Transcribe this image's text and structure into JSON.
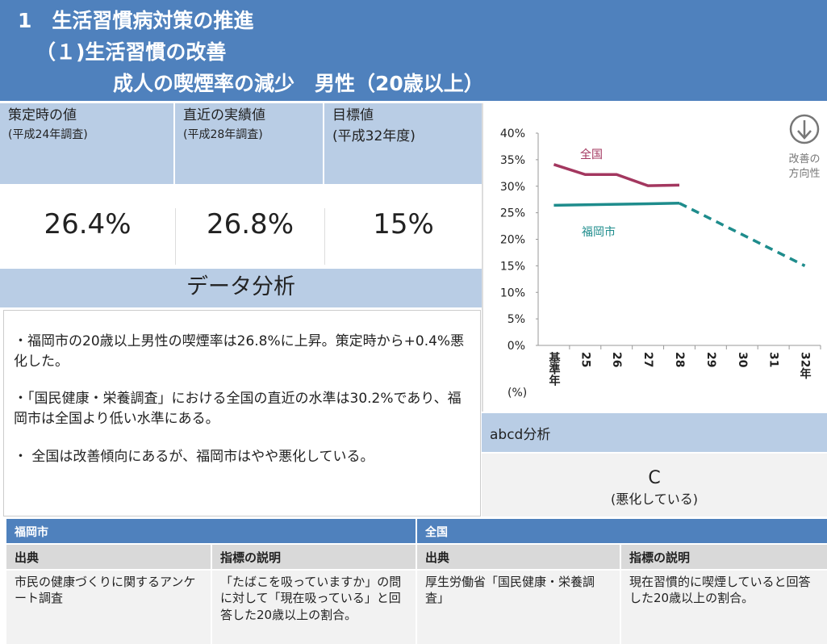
{
  "header": {
    "lines": [
      "1　生活習慣病対策の推進",
      "（１)生活習慣の改善",
      "成人の喫煙率の減少　男性（20歳以上）"
    ]
  },
  "indicators": [
    {
      "label": "策定時の値",
      "sub": "(平成24年調査)",
      "value": "26.4%"
    },
    {
      "label": "直近の実績値",
      "sub": "(平成28年調査)",
      "value": "26.8%"
    },
    {
      "label": "目標値",
      "sub": "(平成32年度)",
      "value": "15%"
    }
  ],
  "analysis": {
    "title": "データ分析",
    "points": [
      "・福岡市の20歳以上男性の喫煙率は26.8%に上昇。策定時から+0.4%悪化した。",
      "・「国民健康・栄養調査」における全国の直近の水準は30.2%であり、福岡市は全国より低い水準にある。",
      "・ 全国は改善傾向にあるが、福岡市はやや悪化している。"
    ]
  },
  "abcd": {
    "title": "abcd分析",
    "grade": "C",
    "note": "(悪化している)"
  },
  "sources": [
    {
      "region": "福岡市",
      "source_header": "出典",
      "desc_header": "指標の説明",
      "source": "市民の健康づくりに関するアンケート調査",
      "desc": "「たばこを吸っていますか」の問に対して「現在吸っている」と回答した20歳以上の割合。"
    },
    {
      "region": "全国",
      "source_header": "出典",
      "desc_header": "指標の説明",
      "source": "厚生労働省「国民健康・栄養調査」",
      "desc": "現在習慣的に喫煙していると回答した20歳以上の割合。"
    }
  ],
  "chart_data": {
    "type": "line",
    "categories": [
      "基準年",
      "25",
      "26",
      "27",
      "28",
      "29",
      "30",
      "31",
      "32年"
    ],
    "series": [
      {
        "name": "全国",
        "color": "#a3375f",
        "values": [
          34.1,
          32.2,
          32.2,
          30.1,
          30.2,
          null,
          null,
          null,
          null
        ]
      },
      {
        "name": "福岡市",
        "color": "#1e8c8c",
        "values": [
          26.4,
          26.5,
          26.6,
          26.7,
          26.8,
          null,
          null,
          null,
          null
        ]
      },
      {
        "color": "#1e8c8c",
        "dashed": true,
        "values": [
          null,
          null,
          null,
          null,
          26.8,
          23.85,
          20.9,
          17.95,
          15
        ]
      }
    ],
    "ylim": [
      0,
      40
    ],
    "yticks": [
      {
        "value": 0,
        "label": "0%"
      },
      {
        "value": 5,
        "label": "5%"
      },
      {
        "value": 10,
        "label": "10%"
      },
      {
        "value": 15,
        "label": "15%"
      },
      {
        "value": 20,
        "label": "20%"
      },
      {
        "value": 25,
        "label": "25%"
      },
      {
        "value": 30,
        "label": "30%"
      },
      {
        "value": 35,
        "label": "35%"
      },
      {
        "value": 40,
        "label": "40%"
      }
    ],
    "y_label": "(%)",
    "annotations": [
      "改善の",
      "方向性"
    ]
  }
}
